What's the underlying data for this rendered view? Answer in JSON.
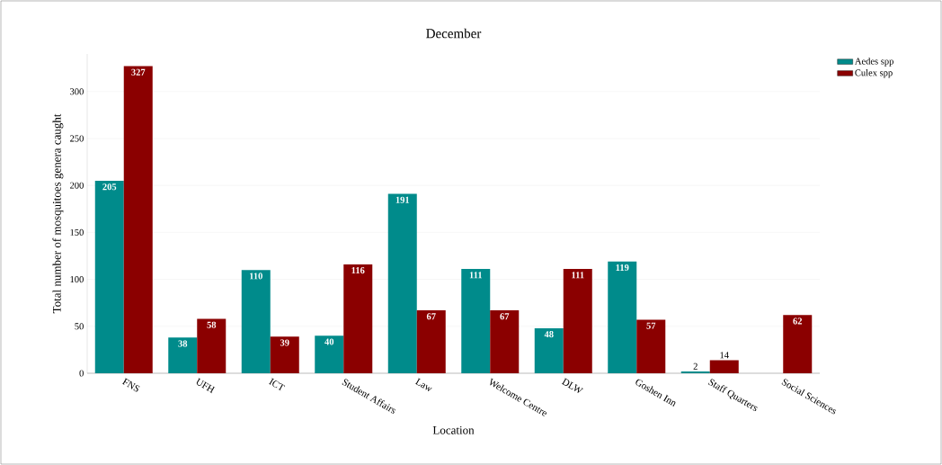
{
  "chart_data": {
    "type": "bar",
    "title": "December",
    "xlabel": "Location",
    "ylabel": "Total number of mosquitoes genera caught",
    "categories": [
      "FNS",
      "UFH",
      "ICT",
      "Student Affairs",
      "Law",
      "Welcome Centre",
      "DLW",
      "Goshen Inn",
      "Staff Quarters",
      "Social Sciences"
    ],
    "series": [
      {
        "name": "Aedes spp",
        "color": "#008b8b",
        "values": [
          205,
          38,
          110,
          40,
          191,
          111,
          48,
          119,
          2,
          0
        ],
        "value_labels": [
          "205",
          "38",
          "110",
          "40",
          "191",
          "111",
          "48",
          "119",
          "2",
          null
        ]
      },
      {
        "name": "Culex spp",
        "color": "#8b0000",
        "values": [
          327,
          58,
          39,
          116,
          67,
          67,
          111,
          57,
          14,
          62
        ],
        "value_labels": [
          "327",
          "58",
          "39",
          "116",
          "67",
          "67",
          "111",
          "57",
          "14",
          "62"
        ]
      }
    ],
    "ylim": [
      0,
      340
    ],
    "yticks": [
      0,
      50,
      100,
      150,
      200,
      250,
      300
    ],
    "grid": "y",
    "legend": "top right"
  }
}
